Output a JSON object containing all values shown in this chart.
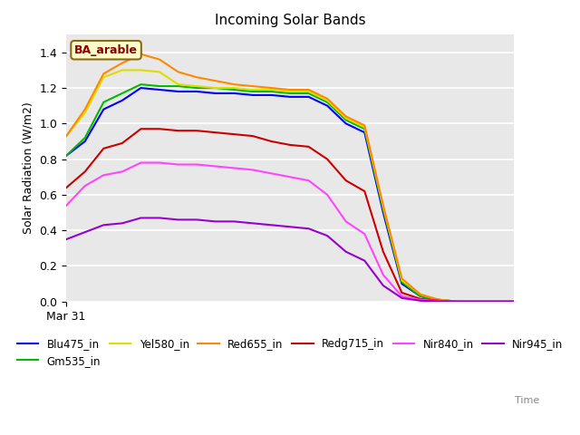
{
  "title": "Incoming Solar Bands",
  "xlabel": "Time",
  "ylabel": "Solar Radiation (W/m2)",
  "x_tick_label": "Mar 31",
  "annotation_text": "BA_arable",
  "plot_bg_color": "#e8e8e8",
  "fig_bg_color": "#ffffff",
  "ylim": [
    0.0,
    1.5
  ],
  "yticks": [
    0.0,
    0.2,
    0.4,
    0.6,
    0.8,
    1.0,
    1.2,
    1.4
  ],
  "series": {
    "Blu475_in": {
      "color": "#0000ff",
      "y": [
        0.82,
        0.9,
        1.08,
        1.13,
        1.2,
        1.19,
        1.18,
        1.18,
        1.17,
        1.17,
        1.16,
        1.16,
        1.15,
        1.15,
        1.1,
        1.0,
        0.95,
        0.5,
        0.1,
        0.03,
        0.01,
        0.0,
        0.0,
        0.0,
        0.0
      ]
    },
    "Gm535_in": {
      "color": "#00bb00",
      "y": [
        0.82,
        0.92,
        1.12,
        1.17,
        1.22,
        1.21,
        1.21,
        1.2,
        1.2,
        1.19,
        1.18,
        1.18,
        1.17,
        1.17,
        1.12,
        1.02,
        0.97,
        0.52,
        0.11,
        0.03,
        0.01,
        0.0,
        0.0,
        0.0,
        0.0
      ]
    },
    "Yel580_in": {
      "color": "#dddd00",
      "y": [
        0.93,
        1.06,
        1.26,
        1.3,
        1.3,
        1.29,
        1.22,
        1.21,
        1.2,
        1.2,
        1.19,
        1.19,
        1.18,
        1.18,
        1.13,
        1.03,
        0.98,
        0.53,
        0.12,
        0.04,
        0.01,
        0.0,
        0.0,
        0.0,
        0.0
      ]
    },
    "Red655_in": {
      "color": "#ff8800",
      "y": [
        0.93,
        1.08,
        1.28,
        1.34,
        1.39,
        1.36,
        1.29,
        1.26,
        1.24,
        1.22,
        1.21,
        1.2,
        1.19,
        1.19,
        1.14,
        1.04,
        0.99,
        0.54,
        0.13,
        0.04,
        0.01,
        0.0,
        0.0,
        0.0,
        0.0
      ]
    },
    "Redg715_in": {
      "color": "#cc0000",
      "y": [
        0.64,
        0.73,
        0.86,
        0.89,
        0.97,
        0.97,
        0.96,
        0.96,
        0.95,
        0.94,
        0.93,
        0.9,
        0.88,
        0.87,
        0.8,
        0.68,
        0.62,
        0.28,
        0.05,
        0.015,
        0.005,
        0.0,
        0.0,
        0.0,
        0.0
      ]
    },
    "Nir840_in": {
      "color": "#ff44ff",
      "y": [
        0.54,
        0.65,
        0.71,
        0.73,
        0.78,
        0.78,
        0.77,
        0.77,
        0.76,
        0.75,
        0.74,
        0.72,
        0.7,
        0.68,
        0.6,
        0.45,
        0.38,
        0.15,
        0.03,
        0.01,
        0.003,
        0.0,
        0.0,
        0.0,
        0.0
      ]
    },
    "Nir945_in": {
      "color": "#9900cc",
      "y": [
        0.35,
        0.39,
        0.43,
        0.44,
        0.47,
        0.47,
        0.46,
        0.46,
        0.45,
        0.45,
        0.44,
        0.43,
        0.42,
        0.41,
        0.37,
        0.28,
        0.23,
        0.09,
        0.02,
        0.005,
        0.001,
        0.0,
        0.0,
        0.0,
        0.0
      ]
    }
  },
  "legend_order": [
    "Blu475_in",
    "Gm535_in",
    "Yel580_in",
    "Red655_in",
    "Redg715_in",
    "Nir840_in",
    "Nir945_in"
  ]
}
